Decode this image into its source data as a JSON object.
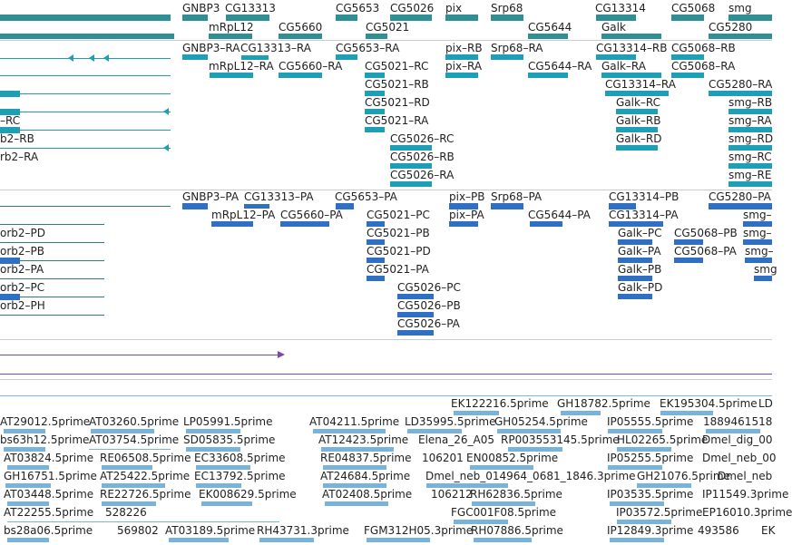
{
  "colors": {
    "gene": "#2f8f95",
    "transcript": "#1f9fb5",
    "protein": "#2f6fc4",
    "est": "#77b3dc",
    "track_line": "#7fb5dc",
    "purple": "#7a4aa8",
    "divider": "#c8cdd4"
  },
  "genes_track": {
    "labels": [
      {
        "name": "gene-label-gnbp3",
        "text": "GNBP3"
      },
      {
        "name": "gene-label-cg13313",
        "text": "CG13313"
      },
      {
        "name": "gene-label-cg5653",
        "text": "CG5653"
      },
      {
        "name": "gene-label-cg5026",
        "text": "CG5026"
      },
      {
        "name": "gene-label-pix",
        "text": "pix"
      },
      {
        "name": "gene-label-srp68",
        "text": "Srp68"
      },
      {
        "name": "gene-label-cg13314",
        "text": "CG13314"
      },
      {
        "name": "gene-label-cg5068",
        "text": "CG5068"
      },
      {
        "name": "gene-label-smg",
        "text": "smg"
      },
      {
        "name": "gene-label-mrpl12",
        "text": "mRpL12"
      },
      {
        "name": "gene-label-cg5660",
        "text": "CG5660"
      },
      {
        "name": "gene-label-cg5021",
        "text": "CG5021"
      },
      {
        "name": "gene-label-cg5644",
        "text": "CG5644"
      },
      {
        "name": "gene-label-galk",
        "text": "Galk"
      },
      {
        "name": "gene-label-cg5280",
        "text": "CG5280"
      }
    ]
  },
  "transcripts_track": {
    "labels": [
      {
        "name": "transcript-label-gnbp3-ra",
        "text": "GNBP3–RA"
      },
      {
        "name": "transcript-label-cg13313-ra",
        "text": "CG13313–RA"
      },
      {
        "name": "transcript-label-cg5653-ra",
        "text": "CG5653–RA"
      },
      {
        "name": "transcript-label-pix-rb",
        "text": "pix–RB"
      },
      {
        "name": "transcript-label-srp68-ra",
        "text": "Srp68–RA"
      },
      {
        "name": "transcript-label-cg13314-rb",
        "text": "CG13314–RB"
      },
      {
        "name": "transcript-label-cg5068-rb",
        "text": "CG5068–RB"
      },
      {
        "name": "transcript-label-mrpl12-ra",
        "text": "mRpL12–RA"
      },
      {
        "name": "transcript-label-cg5660-ra",
        "text": "CG5660–RA"
      },
      {
        "name": "transcript-label-cg5021-rc",
        "text": "CG5021–RC"
      },
      {
        "name": "transcript-label-pix-ra",
        "text": "pix–RA"
      },
      {
        "name": "transcript-label-cg5644-ra",
        "text": "CG5644–RA"
      },
      {
        "name": "transcript-label-galk-ra",
        "text": "Galk–RA"
      },
      {
        "name": "transcript-label-cg5068-ra",
        "text": "CG5068–RA"
      },
      {
        "name": "transcript-label-cg5021-rb",
        "text": "CG5021–RB"
      },
      {
        "name": "transcript-label-cg13314-ra",
        "text": "CG13314–RA"
      },
      {
        "name": "transcript-label-cg5280-ra",
        "text": "CG5280–RA"
      },
      {
        "name": "transcript-label-rc-left",
        "text": "–RC"
      },
      {
        "name": "transcript-label-cg5021-rd",
        "text": "CG5021–RD"
      },
      {
        "name": "transcript-label-galk-rc",
        "text": "Galk–RC"
      },
      {
        "name": "transcript-label-smg-rb",
        "text": "smg–RB"
      },
      {
        "name": "transcript-label-cg5021-ra",
        "text": "CG5021–RA"
      },
      {
        "name": "transcript-label-galk-rb",
        "text": "Galk–RB"
      },
      {
        "name": "transcript-label-smg-ra",
        "text": "smg–RA"
      },
      {
        "name": "transcript-label-b2-rb",
        "text": "b2–RB"
      },
      {
        "name": "transcript-label-cg5026-rc",
        "text": "CG5026–RC"
      },
      {
        "name": "transcript-label-galk-rd",
        "text": "Galk–RD"
      },
      {
        "name": "transcript-label-smg-rd",
        "text": "smg–RD"
      },
      {
        "name": "transcript-label-cg5026-rb",
        "text": "CG5026–RB"
      },
      {
        "name": "transcript-label-smg-rc",
        "text": "smg–RC"
      },
      {
        "name": "transcript-label-rb2-ra",
        "text": "rb2–RA"
      },
      {
        "name": "transcript-label-cg5026-ra",
        "text": "CG5026–RA"
      },
      {
        "name": "transcript-label-smg-re",
        "text": "smg–RE"
      }
    ]
  },
  "proteins_track": {
    "labels": [
      {
        "name": "protein-label-gnbp3-pa",
        "text": "GNBP3–PA"
      },
      {
        "name": "protein-label-cg13313-pa",
        "text": "CG13313–PA"
      },
      {
        "name": "protein-label-cg5653-pa",
        "text": "CG5653–PA"
      },
      {
        "name": "protein-label-pix-pb",
        "text": "pix–PB"
      },
      {
        "name": "protein-label-srp68-pa",
        "text": "Srp68–PA"
      },
      {
        "name": "protein-label-cg13314-pb",
        "text": "CG13314–PB"
      },
      {
        "name": "protein-label-cg5280-pa",
        "text": "CG5280–PA"
      },
      {
        "name": "protein-label-mrpl12-pa",
        "text": "mRpL12–PA"
      },
      {
        "name": "protein-label-cg5660-pa",
        "text": "CG5660–PA"
      },
      {
        "name": "protein-label-cg5021-pc",
        "text": "CG5021–PC"
      },
      {
        "name": "protein-label-pix-pa",
        "text": "pix–PA"
      },
      {
        "name": "protein-label-cg5644-pa",
        "text": "CG5644–PA"
      },
      {
        "name": "protein-label-cg13314-pa",
        "text": "CG13314–PA"
      },
      {
        "name": "protein-label-smg-1",
        "text": "smg–"
      },
      {
        "name": "protein-label-orb2-pd",
        "text": "orb2–PD"
      },
      {
        "name": "protein-label-cg5021-pb",
        "text": "CG5021–PB"
      },
      {
        "name": "protein-label-galk-pc",
        "text": "Galk–PC"
      },
      {
        "name": "protein-label-cg5068-pb",
        "text": "CG5068–PB"
      },
      {
        "name": "protein-label-smg-2",
        "text": "smg–"
      },
      {
        "name": "protein-label-orb2-pb",
        "text": "orb2–PB"
      },
      {
        "name": "protein-label-cg5021-pd",
        "text": "CG5021–PD"
      },
      {
        "name": "protein-label-galk-pa",
        "text": "Galk–PA"
      },
      {
        "name": "protein-label-cg5068-pa",
        "text": "CG5068–PA"
      },
      {
        "name": "protein-label-smg-3",
        "text": "smg–"
      },
      {
        "name": "protein-label-orb2-pa",
        "text": "orb2–PA"
      },
      {
        "name": "protein-label-cg5021-pa",
        "text": "CG5021–PA"
      },
      {
        "name": "protein-label-galk-pb",
        "text": "Galk–PB"
      },
      {
        "name": "protein-label-smg-4",
        "text": "smg"
      },
      {
        "name": "protein-label-orb2-pc",
        "text": "orb2–PC"
      },
      {
        "name": "protein-label-cg5026-pc",
        "text": "CG5026–PC"
      },
      {
        "name": "protein-label-galk-pd",
        "text": "Galk–PD"
      },
      {
        "name": "protein-label-orb2-ph",
        "text": "orb2–PH"
      },
      {
        "name": "protein-label-cg5026-pb",
        "text": "CG5026–PB"
      },
      {
        "name": "protein-label-cg5026-pa",
        "text": "CG5026–PA"
      }
    ]
  },
  "est_track": {
    "labels": [
      {
        "name": "est-label-1",
        "text": "EK122216.5prime"
      },
      {
        "name": "est-label-2",
        "text": "GH18782.5prime"
      },
      {
        "name": "est-label-3",
        "text": "EK195304.5prime"
      },
      {
        "name": "est-label-4",
        "text": "LD"
      },
      {
        "name": "est-label-5",
        "text": "AT29012.5prime"
      },
      {
        "name": "est-label-6",
        "text": "AT03260.5prime"
      },
      {
        "name": "est-label-7",
        "text": "LP05991.5prime"
      },
      {
        "name": "est-label-8",
        "text": "AT04211.5prime"
      },
      {
        "name": "est-label-9",
        "text": "LD35995.5prime"
      },
      {
        "name": "est-label-10",
        "text": "GH05254.5prime"
      },
      {
        "name": "est-label-11",
        "text": "IP05555.5prime"
      },
      {
        "name": "est-label-12",
        "text": "1889461518"
      },
      {
        "name": "est-label-13",
        "text": "bs63h12.5prime"
      },
      {
        "name": "est-label-14",
        "text": "AT03754.5prime"
      },
      {
        "name": "est-label-15",
        "text": "SD05835.5prime"
      },
      {
        "name": "est-label-16",
        "text": "AT12423.5prime"
      },
      {
        "name": "est-label-17",
        "text": "Elena_26_A05"
      },
      {
        "name": "est-label-18",
        "text": "RP003553145.5prime"
      },
      {
        "name": "est-label-19",
        "text": "HL02265.5prime"
      },
      {
        "name": "est-label-20",
        "text": "Dmel_dig_00"
      },
      {
        "name": "est-label-21",
        "text": "AT03824.5prime"
      },
      {
        "name": "est-label-22",
        "text": "RE06508.5prime"
      },
      {
        "name": "est-label-23",
        "text": "EC33608.5prime"
      },
      {
        "name": "est-label-24",
        "text": "RE04837.5prime"
      },
      {
        "name": "est-label-25",
        "text": "106201"
      },
      {
        "name": "est-label-26",
        "text": "EN00852.5prime"
      },
      {
        "name": "est-label-27",
        "text": "IP05255.5prime"
      },
      {
        "name": "est-label-28",
        "text": "Dmel_neb_00"
      },
      {
        "name": "est-label-29",
        "text": "GH16751.5prime"
      },
      {
        "name": "est-label-30",
        "text": "AT25422.5prime"
      },
      {
        "name": "est-label-31",
        "text": "EC13792.5prime"
      },
      {
        "name": "est-label-32",
        "text": "AT24684.5prime"
      },
      {
        "name": "est-label-33",
        "text": "Dmel_neb_014964_0681_1846.3prime"
      },
      {
        "name": "est-label-34",
        "text": "GH21076.5prime"
      },
      {
        "name": "est-label-35",
        "text": "Dmel_neb"
      },
      {
        "name": "est-label-36",
        "text": "AT03448.5prime"
      },
      {
        "name": "est-label-37",
        "text": "RE22726.5prime"
      },
      {
        "name": "est-label-38",
        "text": "EK008629.5prime"
      },
      {
        "name": "est-label-39",
        "text": "AT02408.5prime"
      },
      {
        "name": "est-label-40",
        "text": "106212"
      },
      {
        "name": "est-label-41",
        "text": "RH62836.5prime"
      },
      {
        "name": "est-label-42",
        "text": "IP03535.5prime"
      },
      {
        "name": "est-label-43",
        "text": "IP11549.3prime"
      },
      {
        "name": "est-label-44",
        "text": "AT22255.5prime"
      },
      {
        "name": "est-label-45",
        "text": "528226"
      },
      {
        "name": "est-label-46",
        "text": "FGC001F08.5prime"
      },
      {
        "name": "est-label-47",
        "text": "IP03572.5prime"
      },
      {
        "name": "est-label-48",
        "text": "EP16010.3prime"
      },
      {
        "name": "est-label-49",
        "text": "bs28a06.5prime"
      },
      {
        "name": "est-label-50",
        "text": "569802"
      },
      {
        "name": "est-label-51",
        "text": "AT03189.5prime"
      },
      {
        "name": "est-label-52",
        "text": "RH43731.3prime"
      },
      {
        "name": "est-label-53",
        "text": "FGM312H05.3prime"
      },
      {
        "name": "est-label-54",
        "text": "RH07886.5prime"
      },
      {
        "name": "est-label-55",
        "text": "IP12849.3prime"
      },
      {
        "name": "est-label-56",
        "text": "493586"
      },
      {
        "name": "est-label-57",
        "text": "EK"
      }
    ]
  }
}
